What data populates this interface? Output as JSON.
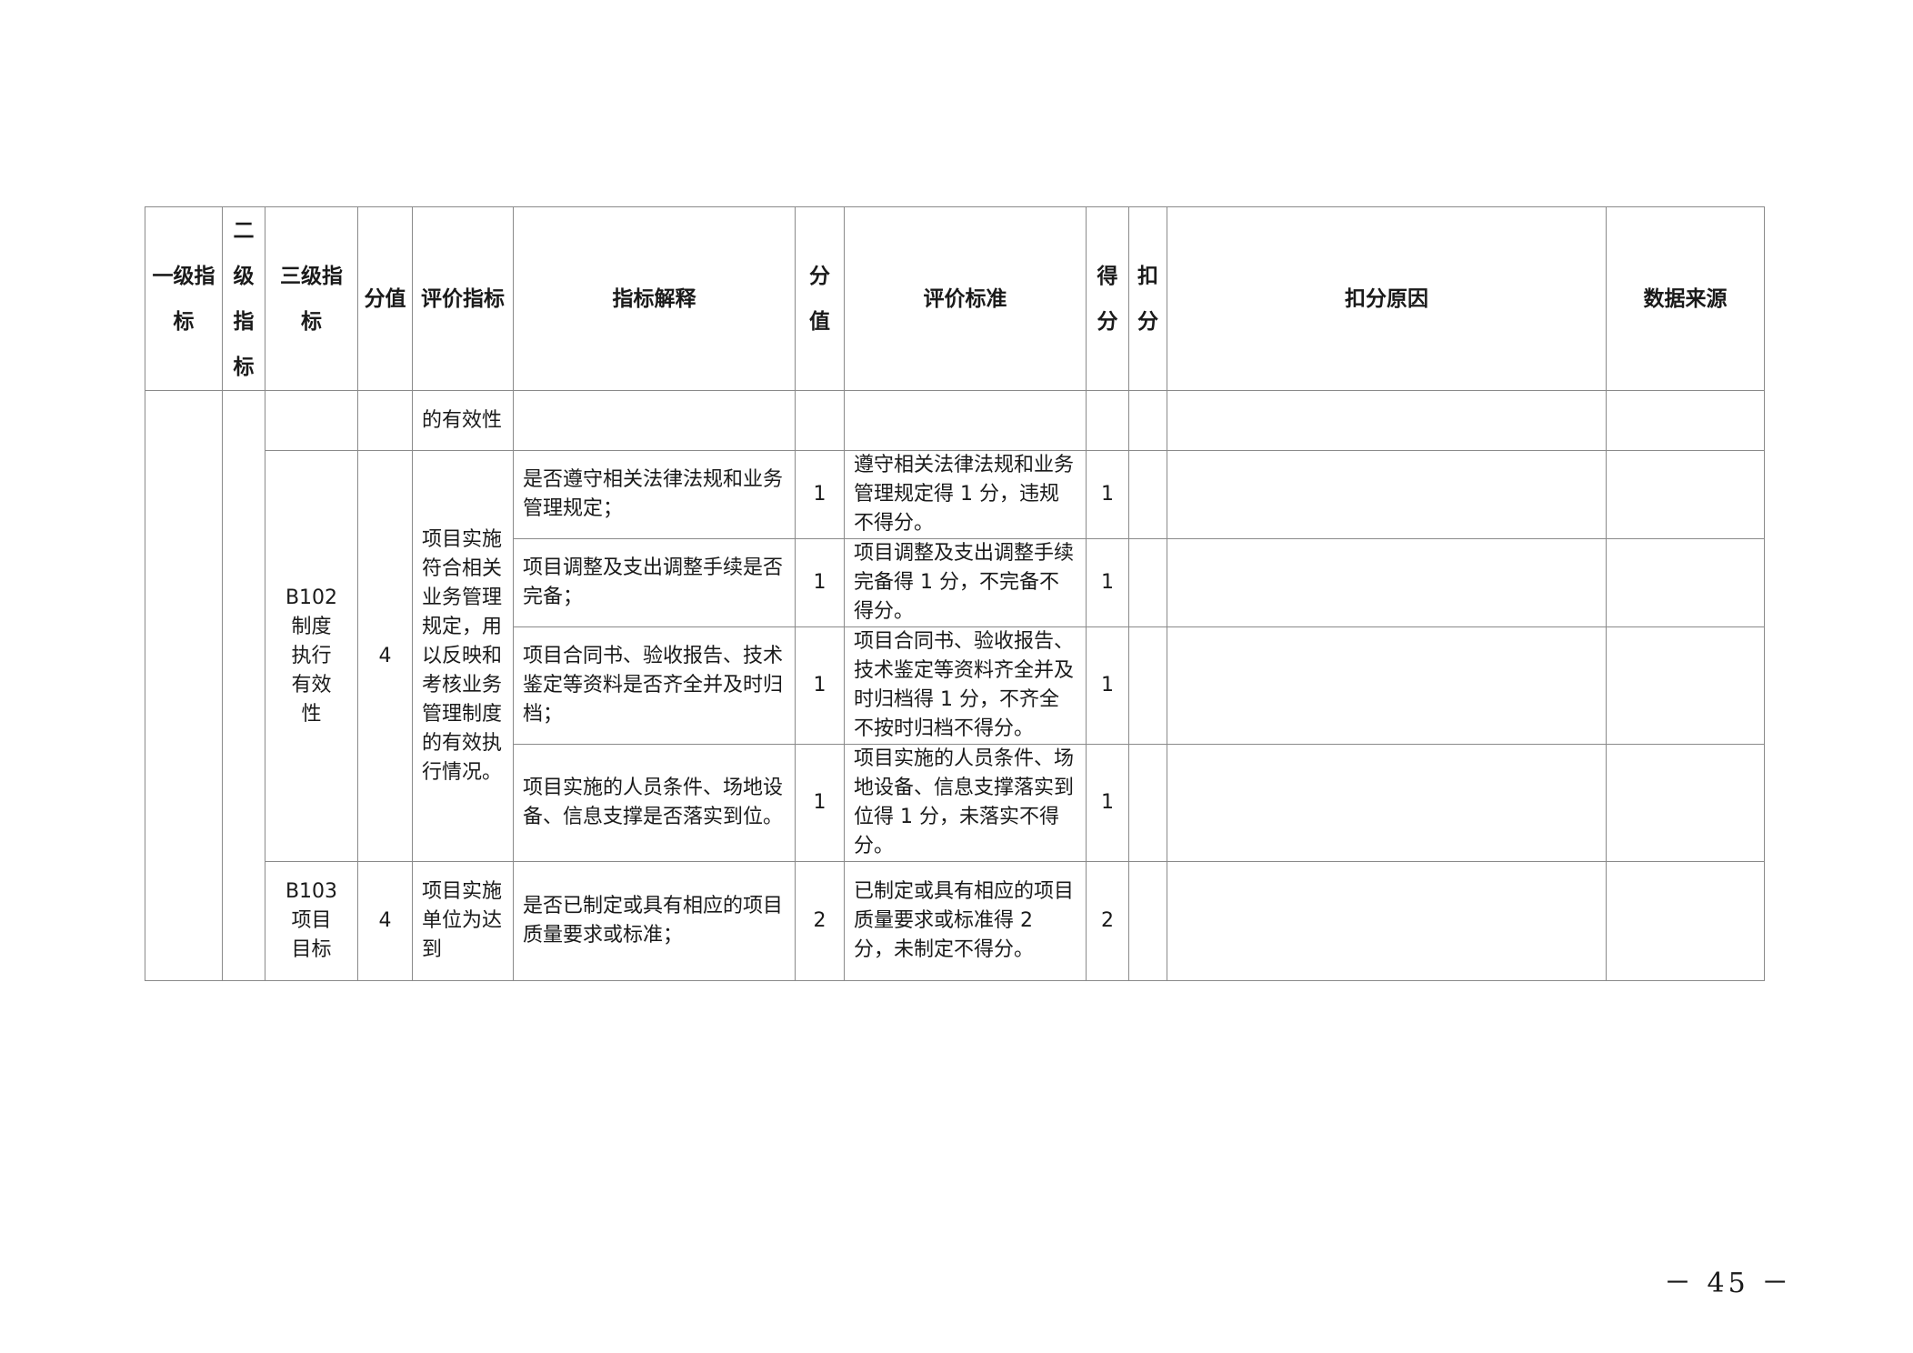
{
  "headers": [
    "一级指标",
    "二级指标",
    "三级指标",
    "分值",
    "评价指标",
    "指标解释",
    "分值",
    "评价标准",
    "得分",
    "扣分",
    "扣分原因",
    "数据来源"
  ],
  "rows": {
    "r0": {
      "indicator": "的有效性"
    },
    "b102": {
      "code": "B102",
      "name": "制度执行有效性",
      "score": "4",
      "indicator": "项目实施符合相关业务管理规定，用以反映和考核业务管理制度的有效执行情况。",
      "items": [
        {
          "explain": "是否遵守相关法律法规和业务管理规定；",
          "score": "1",
          "standard": "遵守相关法律法规和业务管理规定得 1 分，违规不得分。",
          "got": "1"
        },
        {
          "explain": "项目调整及支出调整手续是否完备；",
          "score": "1",
          "standard": "项目调整及支出调整手续完备得 1 分，不完备不得分。",
          "got": "1"
        },
        {
          "explain": "项目合同书、验收报告、技术鉴定等资料是否齐全并及时归档；",
          "score": "1",
          "standard": "项目合同书、验收报告、技术鉴定等资料齐全并及时归档得 1 分，不齐全不按时归档不得分。",
          "got": "1"
        },
        {
          "explain": "项目实施的人员条件、场地设备、信息支撑是否落实到位。",
          "score": "1",
          "standard": "项目实施的人员条件、场地设备、信息支撑落实到位得 1 分，未落实不得分。",
          "got": "1"
        }
      ]
    },
    "b103": {
      "code": "B103",
      "name": "项目目标",
      "score": "4",
      "indicator": "项目实施单位为达到",
      "explain": "是否已制定或具有相应的项目质量要求或标准；",
      "item_score": "2",
      "standard": "已制定或具有相应的项目质量要求或标准得 2 分，未制定不得分。",
      "got": "2"
    }
  },
  "page_number": "－ 45 －"
}
